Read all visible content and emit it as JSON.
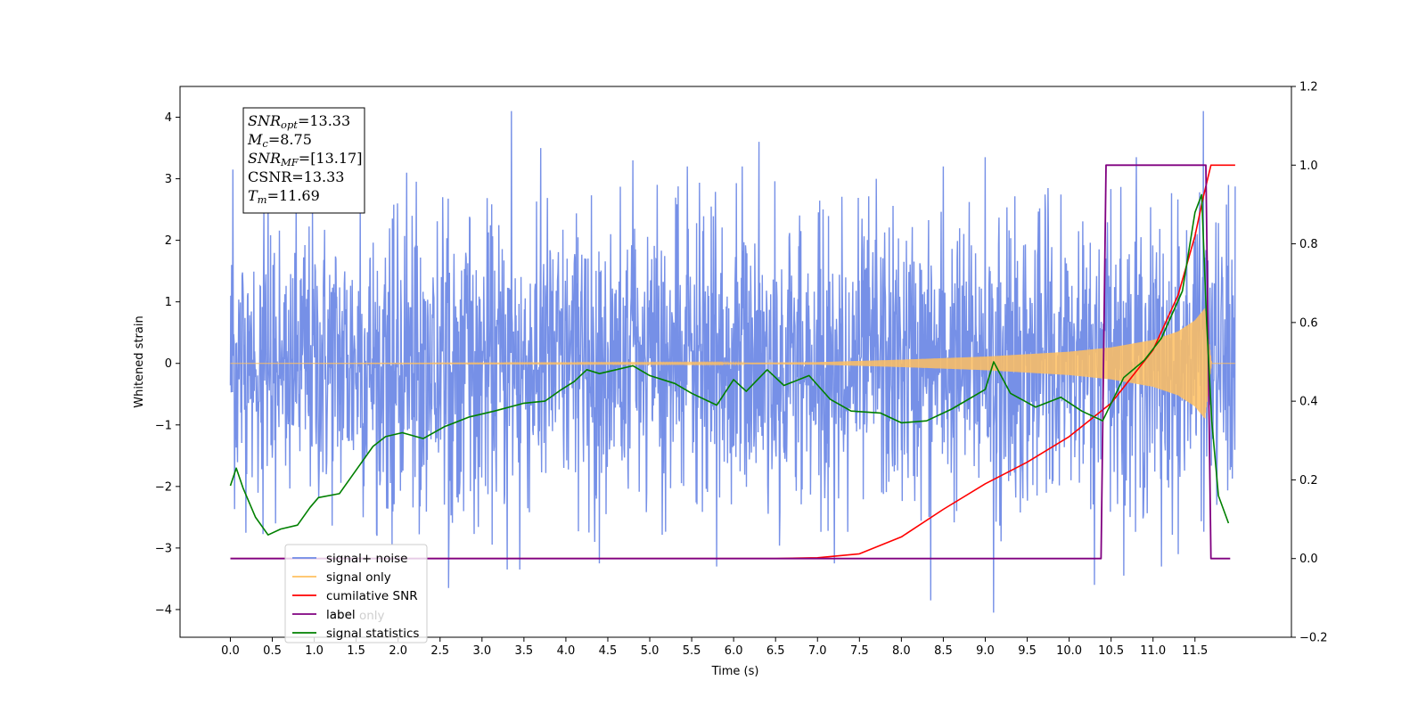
{
  "chart_data": {
    "type": "line",
    "xlabel": "Time (s)",
    "ylabel": "Whitened strain",
    "xlim": [
      -0.6,
      12.65
    ],
    "ylim_left": [
      -4.45,
      4.5
    ],
    "ylim_right": [
      -0.2,
      1.2
    ],
    "x_ticks": [
      "0.0",
      "0.5",
      "1.0",
      "1.5",
      "2.0",
      "2.5",
      "3.0",
      "3.5",
      "4.0",
      "4.5",
      "5.0",
      "5.5",
      "6.0",
      "6.5",
      "7.0",
      "7.5",
      "8.0",
      "8.5",
      "9.0",
      "9.5",
      "10.0",
      "10.5",
      "11.0",
      "11.5"
    ],
    "y_ticks_left": [
      "4",
      "3",
      "2",
      "1",
      "0",
      "−1",
      "−2",
      "−3",
      "−4"
    ],
    "y_ticks_right": [
      "1.2",
      "1.0",
      "0.8",
      "0.6",
      "0.4",
      "0.2",
      "0.0",
      "−0.2"
    ],
    "annotation": {
      "lines": [
        {
          "base": "SNR",
          "sub": "opt",
          "rest": "=13.33"
        },
        {
          "base": "M",
          "sub": "c",
          "rest": "=8.75"
        },
        {
          "base": "SNR",
          "sub": "MF",
          "rest": "=[13.17]"
        },
        {
          "base": "CSNR",
          "sub": "",
          "rest": "=13.33"
        },
        {
          "base": "T",
          "sub": "m",
          "rest": "=11.69"
        }
      ]
    },
    "legend": {
      "position": "lower-left",
      "entries": [
        {
          "label": "signal+ noise",
          "color": "#6f8ae6"
        },
        {
          "label": "signal only",
          "color": "#ffc060"
        },
        {
          "label": "cumilative SNR",
          "color": "#ff0000"
        },
        {
          "label": "label",
          "color": "#800080"
        },
        {
          "label": "signal statistics",
          "color": "#008000"
        }
      ]
    },
    "hidden_legend_text": "label only",
    "series": [
      {
        "name": "signal+ noise",
        "axis": "left",
        "color": "#6f8ae6",
        "x_range": [
          0.0,
          11.98
        ],
        "noise_std": 1.15,
        "peaks": [
          [
            0.03,
            3.15
          ],
          [
            0.4,
            2.5
          ],
          [
            0.45,
            2.7
          ],
          [
            1.55,
            2.7
          ],
          [
            2.1,
            3.1
          ],
          [
            3.35,
            4.1
          ],
          [
            3.7,
            3.5
          ],
          [
            4.8,
            3.3
          ],
          [
            5.45,
            3.2
          ],
          [
            6.3,
            3.6
          ],
          [
            6.1,
            3.2
          ],
          [
            7.7,
            3.0
          ],
          [
            8.5,
            3.2
          ],
          [
            9.0,
            3.35
          ],
          [
            10.8,
            3.35
          ],
          [
            11.6,
            4.1
          ],
          [
            11.9,
            2.9
          ]
        ],
        "troughs": [
          [
            2.6,
            -3.65
          ],
          [
            3.3,
            -3.35
          ],
          [
            3.45,
            -3.35
          ],
          [
            4.4,
            -3.25
          ],
          [
            5.8,
            -3.3
          ],
          [
            7.2,
            -3.25
          ],
          [
            8.35,
            -3.85
          ],
          [
            9.1,
            -4.05
          ],
          [
            10.3,
            -3.6
          ],
          [
            10.65,
            -3.45
          ],
          [
            11.1,
            -3.3
          ],
          [
            11.3,
            -3.1
          ]
        ]
      },
      {
        "name": "signal only",
        "axis": "left",
        "color": "#ffc060",
        "envelope_x": [
          0.0,
          6.0,
          7.0,
          8.0,
          9.0,
          10.0,
          10.5,
          11.0,
          11.3,
          11.5,
          11.62,
          11.7,
          11.98
        ],
        "envelope_amp": [
          0.0,
          0.01,
          0.02,
          0.06,
          0.11,
          0.19,
          0.26,
          0.38,
          0.52,
          0.7,
          0.9,
          0.0,
          0.0
        ]
      },
      {
        "name": "cumilative SNR",
        "axis": "right",
        "color": "#ff0000",
        "x": [
          0.0,
          6.5,
          7.0,
          7.5,
          8.0,
          8.5,
          9.0,
          9.5,
          10.0,
          10.5,
          11.0,
          11.3,
          11.5,
          11.6,
          11.69,
          11.98
        ],
        "y": [
          0.0,
          0.0,
          0.002,
          0.012,
          0.055,
          0.125,
          0.19,
          0.245,
          0.31,
          0.395,
          0.53,
          0.67,
          0.82,
          0.92,
          1.0,
          1.0
        ]
      },
      {
        "name": "label",
        "axis": "right",
        "color": "#800080",
        "x": [
          0.0,
          10.38,
          10.44,
          11.63,
          11.69,
          11.92
        ],
        "y": [
          0.0,
          0.0,
          1.0,
          1.0,
          0.0,
          0.0
        ]
      },
      {
        "name": "signal statistics",
        "axis": "right",
        "color": "#008000",
        "x": [
          0.0,
          0.07,
          0.15,
          0.3,
          0.45,
          0.6,
          0.8,
          0.95,
          1.05,
          1.3,
          1.55,
          1.7,
          1.85,
          2.05,
          2.3,
          2.55,
          2.85,
          3.15,
          3.5,
          3.75,
          3.95,
          4.1,
          4.25,
          4.4,
          4.6,
          4.8,
          5.0,
          5.3,
          5.5,
          5.8,
          6.0,
          6.15,
          6.4,
          6.6,
          6.9,
          7.15,
          7.4,
          7.75,
          8.0,
          8.3,
          8.6,
          9.0,
          9.1,
          9.3,
          9.6,
          9.9,
          10.15,
          10.4,
          10.65,
          10.9,
          11.1,
          11.35,
          11.5,
          11.58,
          11.64,
          11.7,
          11.78,
          11.9
        ],
        "y": [
          0.185,
          0.23,
          0.18,
          0.105,
          0.06,
          0.075,
          0.085,
          0.13,
          0.155,
          0.165,
          0.24,
          0.285,
          0.31,
          0.32,
          0.305,
          0.335,
          0.36,
          0.375,
          0.395,
          0.4,
          0.43,
          0.45,
          0.48,
          0.47,
          0.48,
          0.49,
          0.465,
          0.445,
          0.42,
          0.39,
          0.455,
          0.425,
          0.48,
          0.44,
          0.465,
          0.405,
          0.375,
          0.37,
          0.345,
          0.35,
          0.38,
          0.43,
          0.5,
          0.42,
          0.385,
          0.41,
          0.375,
          0.35,
          0.46,
          0.505,
          0.56,
          0.68,
          0.88,
          0.925,
          0.6,
          0.35,
          0.16,
          0.09
        ]
      }
    ]
  }
}
